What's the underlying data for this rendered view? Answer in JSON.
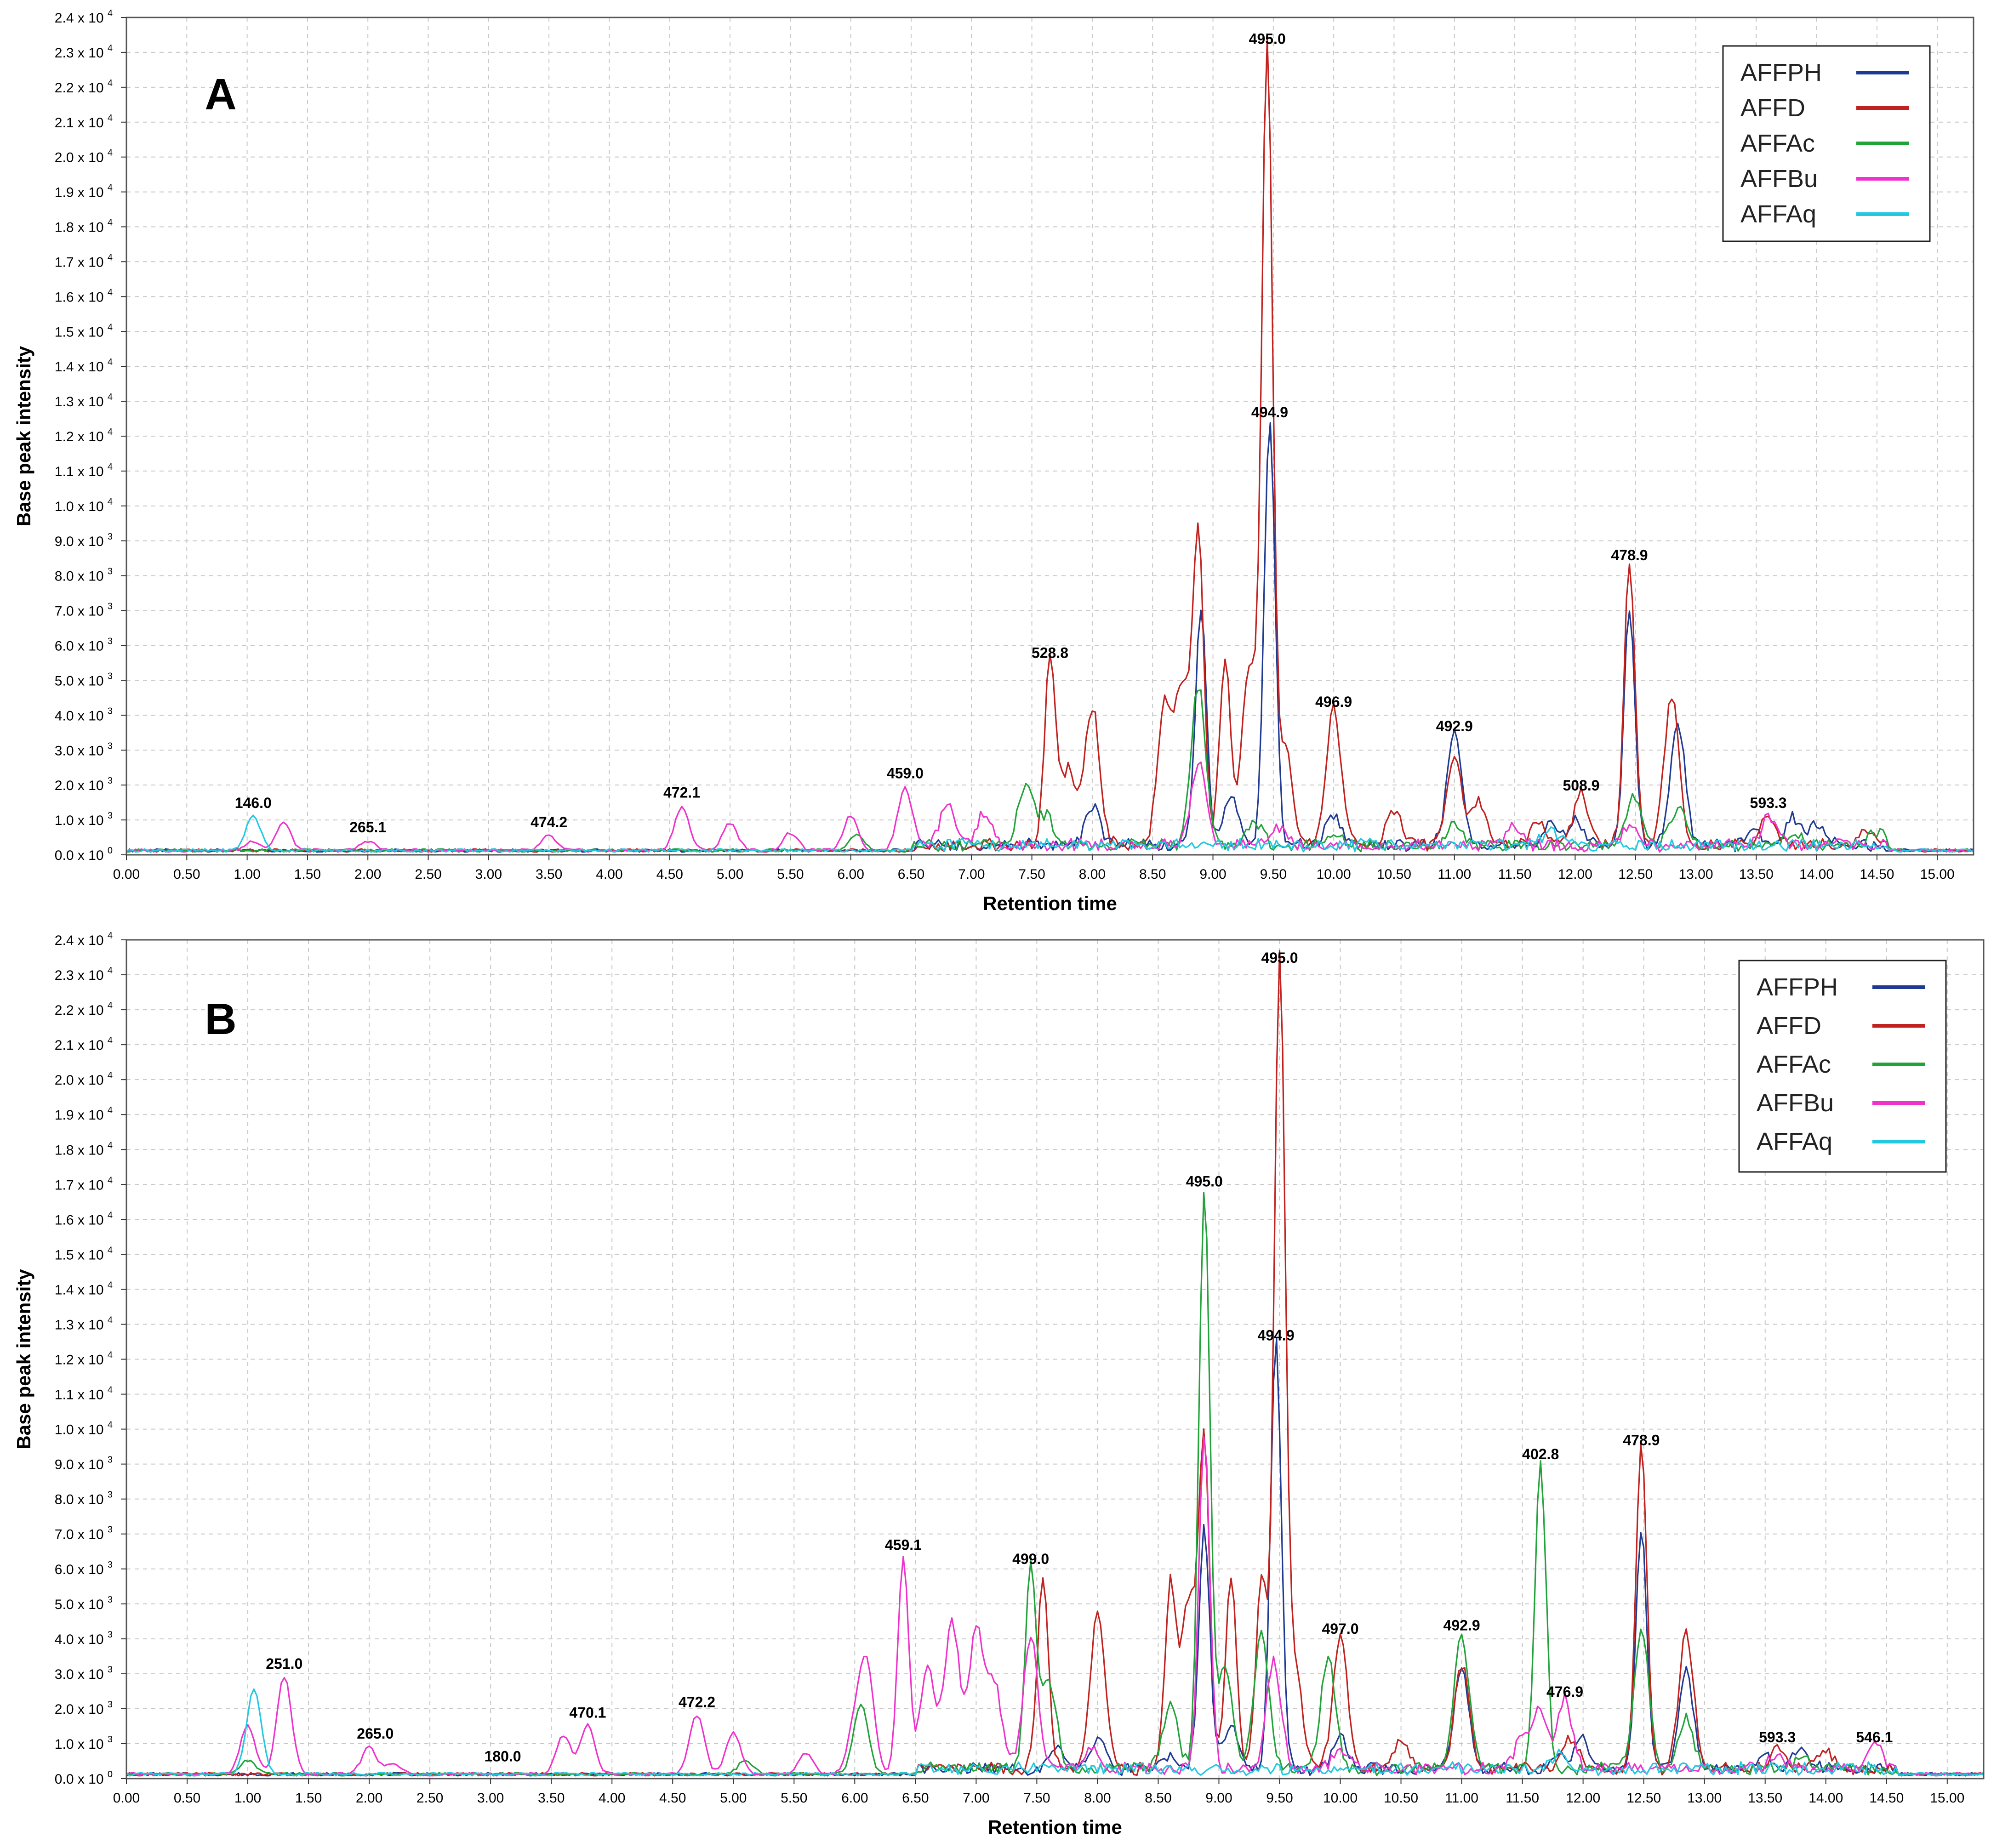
{
  "chart_data": [
    {
      "type": "line",
      "panel_label": "A",
      "xlabel": "Retention time",
      "ylabel": "Base peak intensity",
      "xlim": [
        0,
        15.3
      ],
      "ylim": [
        0,
        24000
      ],
      "grid": true,
      "legend_position": "top-right",
      "x_ticks": [
        "0.00",
        "0.50",
        "1.00",
        "1.50",
        "2.00",
        "2.50",
        "3.00",
        "3.50",
        "4.00",
        "4.50",
        "5.00",
        "5.50",
        "6.00",
        "6.50",
        "7.00",
        "7.50",
        "8.00",
        "8.50",
        "9.00",
        "9.50",
        "10.00",
        "10.50",
        "11.00",
        "11.50",
        "12.00",
        "12.50",
        "13.00",
        "13.50",
        "14.00",
        "14.50",
        "15.00"
      ],
      "y_ticks": [
        {
          "m": "0.0 x 10",
          "e": "0"
        },
        {
          "m": "1.0 x 10",
          "e": "3"
        },
        {
          "m": "2.0 x 10",
          "e": "3"
        },
        {
          "m": "3.0 x 10",
          "e": "3"
        },
        {
          "m": "4.0 x 10",
          "e": "3"
        },
        {
          "m": "5.0 x 10",
          "e": "3"
        },
        {
          "m": "6.0 x 10",
          "e": "3"
        },
        {
          "m": "7.0 x 10",
          "e": "3"
        },
        {
          "m": "8.0 x 10",
          "e": "3"
        },
        {
          "m": "9.0 x 10",
          "e": "3"
        },
        {
          "m": "1.0 x 10",
          "e": "4"
        },
        {
          "m": "1.1 x 10",
          "e": "4"
        },
        {
          "m": "1.2 x 10",
          "e": "4"
        },
        {
          "m": "1.3 x 10",
          "e": "4"
        },
        {
          "m": "1.4 x 10",
          "e": "4"
        },
        {
          "m": "1.5 x 10",
          "e": "4"
        },
        {
          "m": "1.6 x 10",
          "e": "4"
        },
        {
          "m": "1.7 x 10",
          "e": "4"
        },
        {
          "m": "1.8 x 10",
          "e": "4"
        },
        {
          "m": "1.9 x 10",
          "e": "4"
        },
        {
          "m": "2.0 x 10",
          "e": "4"
        },
        {
          "m": "2.1 x 10",
          "e": "4"
        },
        {
          "m": "2.2 x 10",
          "e": "4"
        },
        {
          "m": "2.3 x 10",
          "e": "4"
        },
        {
          "m": "2.4 x 10",
          "e": "4"
        }
      ],
      "series": [
        {
          "name": "AFFPH",
          "color": "#1f3a93",
          "peaks": [
            [
              8.0,
              1100
            ],
            [
              8.9,
              6800
            ],
            [
              9.15,
              1500
            ],
            [
              9.47,
              12200
            ],
            [
              10.0,
              900
            ],
            [
              11.0,
              3200
            ],
            [
              11.8,
              600
            ],
            [
              12.0,
              700
            ],
            [
              12.45,
              6800
            ],
            [
              12.85,
              3500
            ],
            [
              13.5,
              400
            ],
            [
              13.8,
              800
            ],
            [
              14.0,
              600
            ]
          ]
        },
        {
          "name": "AFFD",
          "color": "#c0221f",
          "peaks": [
            [
              7.65,
              5300
            ],
            [
              7.8,
              2200
            ],
            [
              8.0,
              4000
            ],
            [
              8.6,
              4000
            ],
            [
              8.75,
              4500
            ],
            [
              8.88,
              8800
            ],
            [
              9.1,
              5300
            ],
            [
              9.3,
              5000
            ],
            [
              9.45,
              22900
            ],
            [
              9.6,
              2800
            ],
            [
              10.0,
              3900
            ],
            [
              10.5,
              1000
            ],
            [
              11.0,
              2600
            ],
            [
              11.2,
              1200
            ],
            [
              11.7,
              700
            ],
            [
              12.05,
              1500
            ],
            [
              12.45,
              8100
            ],
            [
              12.8,
              4300
            ],
            [
              13.6,
              900
            ],
            [
              14.4,
              400
            ]
          ]
        },
        {
          "name": "AFFAc",
          "color": "#22a33a",
          "peaks": [
            [
              6.05,
              450
            ],
            [
              7.45,
              1800
            ],
            [
              7.62,
              800
            ],
            [
              8.88,
              4600
            ],
            [
              9.35,
              700
            ],
            [
              10.0,
              400
            ],
            [
              11.0,
              700
            ],
            [
              12.48,
              1400
            ],
            [
              12.85,
              1100
            ],
            [
              13.8,
              400
            ],
            [
              14.5,
              400
            ]
          ]
        },
        {
          "name": "AFFBu",
          "color": "#ee33cc",
          "peaks": [
            [
              1.05,
              280
            ],
            [
              1.3,
              800
            ],
            [
              2.0,
              280
            ],
            [
              3.5,
              420
            ],
            [
              4.6,
              1250
            ],
            [
              5.0,
              800
            ],
            [
              5.5,
              500
            ],
            [
              6.0,
              1000
            ],
            [
              6.45,
              1800
            ],
            [
              6.8,
              1200
            ],
            [
              7.1,
              900
            ],
            [
              8.88,
              2400
            ],
            [
              9.55,
              500
            ],
            [
              11.5,
              500
            ],
            [
              12.45,
              600
            ],
            [
              13.6,
              800
            ]
          ]
        },
        {
          "name": "AFFAq",
          "color": "#22c8e0",
          "peaks": [
            [
              1.05,
              1000
            ],
            [
              11.8,
              500
            ]
          ]
        }
      ],
      "annotations": [
        {
          "x": 1.05,
          "y": 1000,
          "text": "146.0"
        },
        {
          "x": 2.0,
          "y": 300,
          "text": "265.1"
        },
        {
          "x": 3.5,
          "y": 450,
          "text": "474.2"
        },
        {
          "x": 4.6,
          "y": 1300,
          "text": "472.1"
        },
        {
          "x": 6.45,
          "y": 1850,
          "text": "459.0"
        },
        {
          "x": 7.65,
          "y": 5300,
          "text": "528.8"
        },
        {
          "x": 9.45,
          "y": 22900,
          "text": "495.0"
        },
        {
          "x": 9.47,
          "y": 12200,
          "text": "494.9"
        },
        {
          "x": 10.0,
          "y": 3900,
          "text": "496.9"
        },
        {
          "x": 11.0,
          "y": 3200,
          "text": "492.9"
        },
        {
          "x": 12.05,
          "y": 1500,
          "text": "508.9"
        },
        {
          "x": 12.45,
          "y": 8100,
          "text": "478.9"
        },
        {
          "x": 13.6,
          "y": 1000,
          "text": "593.3"
        }
      ]
    },
    {
      "type": "line",
      "panel_label": "B",
      "xlabel": "Retention time",
      "ylabel": "Base peak intensity",
      "xlim": [
        0,
        15.3
      ],
      "ylim": [
        0,
        24000
      ],
      "grid": true,
      "legend_position": "top-right",
      "x_ticks": [
        "0.00",
        "0.50",
        "1.00",
        "1.50",
        "2.00",
        "2.50",
        "3.00",
        "3.50",
        "4.00",
        "4.50",
        "5.00",
        "5.50",
        "6.00",
        "6.50",
        "7.00",
        "7.50",
        "8.00",
        "8.50",
        "9.00",
        "9.50",
        "10.00",
        "10.50",
        "11.00",
        "11.50",
        "12.00",
        "12.50",
        "13.00",
        "13.50",
        "14.00",
        "14.50",
        "15.00"
      ],
      "y_ticks": [
        {
          "m": "0.0 x 10",
          "e": "0"
        },
        {
          "m": "1.0 x 10",
          "e": "3"
        },
        {
          "m": "2.0 x 10",
          "e": "3"
        },
        {
          "m": "3.0 x 10",
          "e": "3"
        },
        {
          "m": "4.0 x 10",
          "e": "3"
        },
        {
          "m": "5.0 x 10",
          "e": "3"
        },
        {
          "m": "6.0 x 10",
          "e": "3"
        },
        {
          "m": "7.0 x 10",
          "e": "3"
        },
        {
          "m": "8.0 x 10",
          "e": "3"
        },
        {
          "m": "9.0 x 10",
          "e": "3"
        },
        {
          "m": "1.0 x 10",
          "e": "4"
        },
        {
          "m": "1.1 x 10",
          "e": "4"
        },
        {
          "m": "1.2 x 10",
          "e": "4"
        },
        {
          "m": "1.3 x 10",
          "e": "4"
        },
        {
          "m": "1.4 x 10",
          "e": "4"
        },
        {
          "m": "1.5 x 10",
          "e": "4"
        },
        {
          "m": "1.6 x 10",
          "e": "4"
        },
        {
          "m": "1.7 x 10",
          "e": "4"
        },
        {
          "m": "1.8 x 10",
          "e": "4"
        },
        {
          "m": "1.9 x 10",
          "e": "4"
        },
        {
          "m": "2.0 x 10",
          "e": "4"
        },
        {
          "m": "2.1 x 10",
          "e": "4"
        },
        {
          "m": "2.2 x 10",
          "e": "4"
        },
        {
          "m": "2.3 x 10",
          "e": "4"
        },
        {
          "m": "2.4 x 10",
          "e": "4"
        }
      ],
      "series": [
        {
          "name": "AFFPH",
          "color": "#1f3a93",
          "peaks": [
            [
              7.65,
              600
            ],
            [
              8.0,
              900
            ],
            [
              8.6,
              400
            ],
            [
              8.88,
              6900
            ],
            [
              9.1,
              1300
            ],
            [
              9.47,
              12200
            ],
            [
              10.0,
              900
            ],
            [
              11.0,
              3000
            ],
            [
              11.8,
              500
            ],
            [
              12.0,
              800
            ],
            [
              12.48,
              6900
            ],
            [
              12.85,
              2800
            ],
            [
              13.5,
              400
            ],
            [
              13.8,
              600
            ]
          ]
        },
        {
          "name": "AFFD",
          "color": "#c0221f",
          "peaks": [
            [
              7.55,
              5500
            ],
            [
              8.0,
              4400
            ],
            [
              8.6,
              5200
            ],
            [
              8.75,
              4800
            ],
            [
              8.88,
              9100
            ],
            [
              9.1,
              5500
            ],
            [
              9.35,
              5500
            ],
            [
              9.5,
              23000
            ],
            [
              9.62,
              3000
            ],
            [
              10.0,
              3800
            ],
            [
              10.5,
              800
            ],
            [
              11.0,
              3000
            ],
            [
              11.9,
              900
            ],
            [
              12.48,
              9200
            ],
            [
              12.85,
              3900
            ],
            [
              13.6,
              700
            ],
            [
              14.0,
              500
            ]
          ]
        },
        {
          "name": "AFFAc",
          "color": "#22a33a",
          "peaks": [
            [
              1.0,
              400
            ],
            [
              5.1,
              400
            ],
            [
              6.05,
              2000
            ],
            [
              7.45,
              5800
            ],
            [
              7.6,
              2500
            ],
            [
              8.6,
              1900
            ],
            [
              8.88,
              16600
            ],
            [
              9.05,
              2900
            ],
            [
              9.35,
              4000
            ],
            [
              9.9,
              3200
            ],
            [
              11.0,
              3900
            ],
            [
              11.65,
              8800
            ],
            [
              12.48,
              4000
            ],
            [
              12.85,
              1400
            ],
            [
              13.8,
              300
            ]
          ]
        },
        {
          "name": "AFFBu",
          "color": "#ee33cc",
          "peaks": [
            [
              1.0,
              1400
            ],
            [
              1.3,
              2800
            ],
            [
              2.0,
              800
            ],
            [
              2.2,
              300
            ],
            [
              3.6,
              1100
            ],
            [
              3.8,
              1400
            ],
            [
              4.7,
              1700
            ],
            [
              5.0,
              1200
            ],
            [
              5.6,
              600
            ],
            [
              6.0,
              1300
            ],
            [
              6.1,
              3000
            ],
            [
              6.4,
              6200
            ],
            [
              6.6,
              3000
            ],
            [
              6.8,
              4300
            ],
            [
              7.0,
              4000
            ],
            [
              7.15,
              2400
            ],
            [
              7.45,
              3800
            ],
            [
              7.95,
              600
            ],
            [
              8.88,
              9600
            ],
            [
              9.45,
              3100
            ],
            [
              10.0,
              600
            ],
            [
              11.5,
              1000
            ],
            [
              11.65,
              1700
            ],
            [
              11.85,
              2000
            ],
            [
              13.6,
              400
            ],
            [
              14.4,
              700
            ]
          ]
        },
        {
          "name": "AFFAq",
          "color": "#22c8e0",
          "peaks": [
            [
              1.05,
              2400
            ],
            [
              11.8,
              400
            ]
          ]
        }
      ],
      "annotations": [
        {
          "x": 1.3,
          "y": 2800,
          "text": "251.0"
        },
        {
          "x": 2.05,
          "y": 800,
          "text": "265.0"
        },
        {
          "x": 3.1,
          "y": 150,
          "text": "180.0"
        },
        {
          "x": 3.8,
          "y": 1400,
          "text": "470.1"
        },
        {
          "x": 4.7,
          "y": 1700,
          "text": "472.2"
        },
        {
          "x": 6.4,
          "y": 6200,
          "text": "459.1"
        },
        {
          "x": 7.45,
          "y": 5800,
          "text": "499.0"
        },
        {
          "x": 8.88,
          "y": 16600,
          "text": "495.0"
        },
        {
          "x": 9.5,
          "y": 23000,
          "text": "495.0"
        },
        {
          "x": 9.47,
          "y": 12200,
          "text": "494.9"
        },
        {
          "x": 10.0,
          "y": 3800,
          "text": "497.0"
        },
        {
          "x": 11.0,
          "y": 3900,
          "text": "492.9"
        },
        {
          "x": 11.65,
          "y": 8800,
          "text": "402.8"
        },
        {
          "x": 11.85,
          "y": 2000,
          "text": "476.9"
        },
        {
          "x": 12.48,
          "y": 9200,
          "text": "478.9"
        },
        {
          "x": 13.6,
          "y": 700,
          "text": "593.3"
        },
        {
          "x": 14.4,
          "y": 700,
          "text": "546.1"
        }
      ]
    }
  ]
}
